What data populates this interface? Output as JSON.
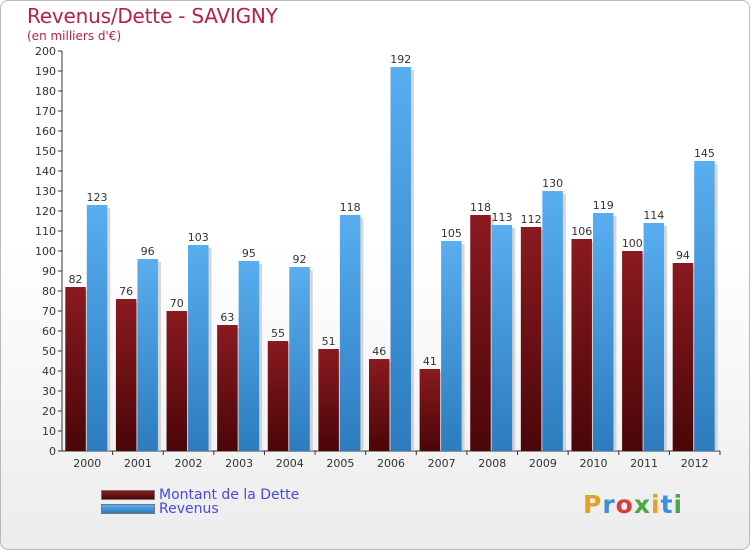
{
  "title": "Revenus/Dette - SAVIGNY",
  "subtitle": "(en milliers d'€)",
  "logo": {
    "text": "Proxiti",
    "colors": [
      "#e8a020",
      "#3c8fd8",
      "#d83c3c",
      "#4aa84a",
      "#e8a020",
      "#3c8fd8",
      "#4aa84a"
    ]
  },
  "chart_data": {
    "type": "bar",
    "title": "Revenus/Dette - SAVIGNY",
    "ylabel": "(en milliers d'€)",
    "ylim": [
      0,
      200
    ],
    "ytick_step": 10,
    "grid": false,
    "legend_position": "bottom-left",
    "categories": [
      "2000",
      "2001",
      "2002",
      "2003",
      "2004",
      "2005",
      "2006",
      "2007",
      "2008",
      "2009",
      "2010",
      "2011",
      "2012"
    ],
    "series": [
      {
        "name": "Montant de la Dette",
        "color": "#7a1016",
        "values": [
          82,
          76,
          70,
          63,
          55,
          51,
          46,
          41,
          118,
          112,
          106,
          100,
          94
        ]
      },
      {
        "name": "Revenus",
        "color": "#4a9ee0",
        "values": [
          123,
          96,
          103,
          95,
          92,
          118,
          192,
          105,
          113,
          130,
          119,
          114,
          145
        ]
      }
    ]
  }
}
